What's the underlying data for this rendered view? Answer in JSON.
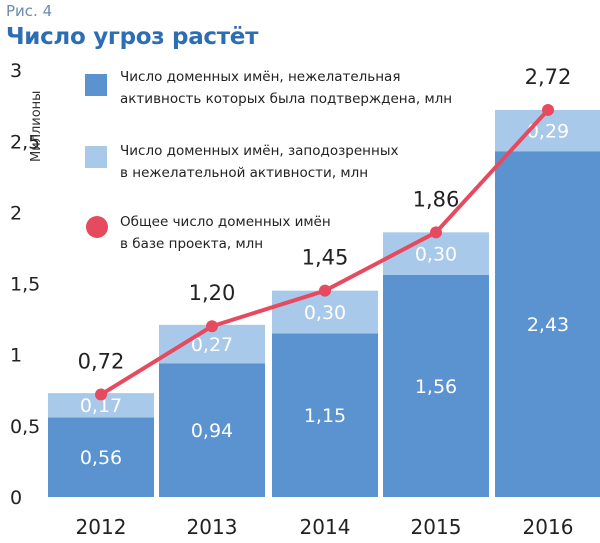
{
  "figure_label": "Рис. 4",
  "colors": {
    "confirmed": "#5b93d0",
    "suspected": "#a9c9ea",
    "total": "#e64a5e",
    "title": "#2d6db3"
  },
  "chart_data": {
    "type": "bar",
    "stacked": true,
    "title": "Число угроз растёт",
    "ylabel": "Миллионы",
    "xlabel": "",
    "ylim": [
      0,
      3
    ],
    "yticks": [
      "0",
      "0,5",
      "1",
      "1,5",
      "2",
      "2,5",
      "3"
    ],
    "ytick_values": [
      0,
      0.5,
      1,
      1.5,
      2,
      2.5,
      3
    ],
    "categories": [
      "2012",
      "2013",
      "2014",
      "2015",
      "2016"
    ],
    "grid": false,
    "legend_position": "top-left",
    "series": [
      {
        "name": "Число доменных имён, нежелательная активность которых была подтверждена, млн",
        "name_lines": [
          "Число доменных имён, нежелательная",
          "активность которых была подтверждена, млн"
        ],
        "kind": "bar",
        "values": [
          0.56,
          0.94,
          1.15,
          1.56,
          2.43
        ],
        "labels": [
          "0,56",
          "0,94",
          "1,15",
          "1,56",
          "2,43"
        ]
      },
      {
        "name": "Число доменных имён, заподозренных в нежелательной активности, млн",
        "name_lines": [
          "Число доменных имён, заподозренных",
          "в нежелательной активности, млн"
        ],
        "kind": "bar",
        "values": [
          0.17,
          0.27,
          0.3,
          0.3,
          0.29
        ],
        "labels": [
          "0,17",
          "0,27",
          "0,30",
          "0,30",
          "0,29"
        ]
      },
      {
        "name": "Общее число доменных имён в базе проекта, млн",
        "name_lines": [
          "Общее число доменных имён",
          "в базе проекта, млн"
        ],
        "kind": "line",
        "values": [
          0.72,
          1.2,
          1.45,
          1.86,
          2.72
        ],
        "labels": [
          "0,72",
          "1,20",
          "1,45",
          "1,86",
          "2,72"
        ]
      }
    ]
  }
}
